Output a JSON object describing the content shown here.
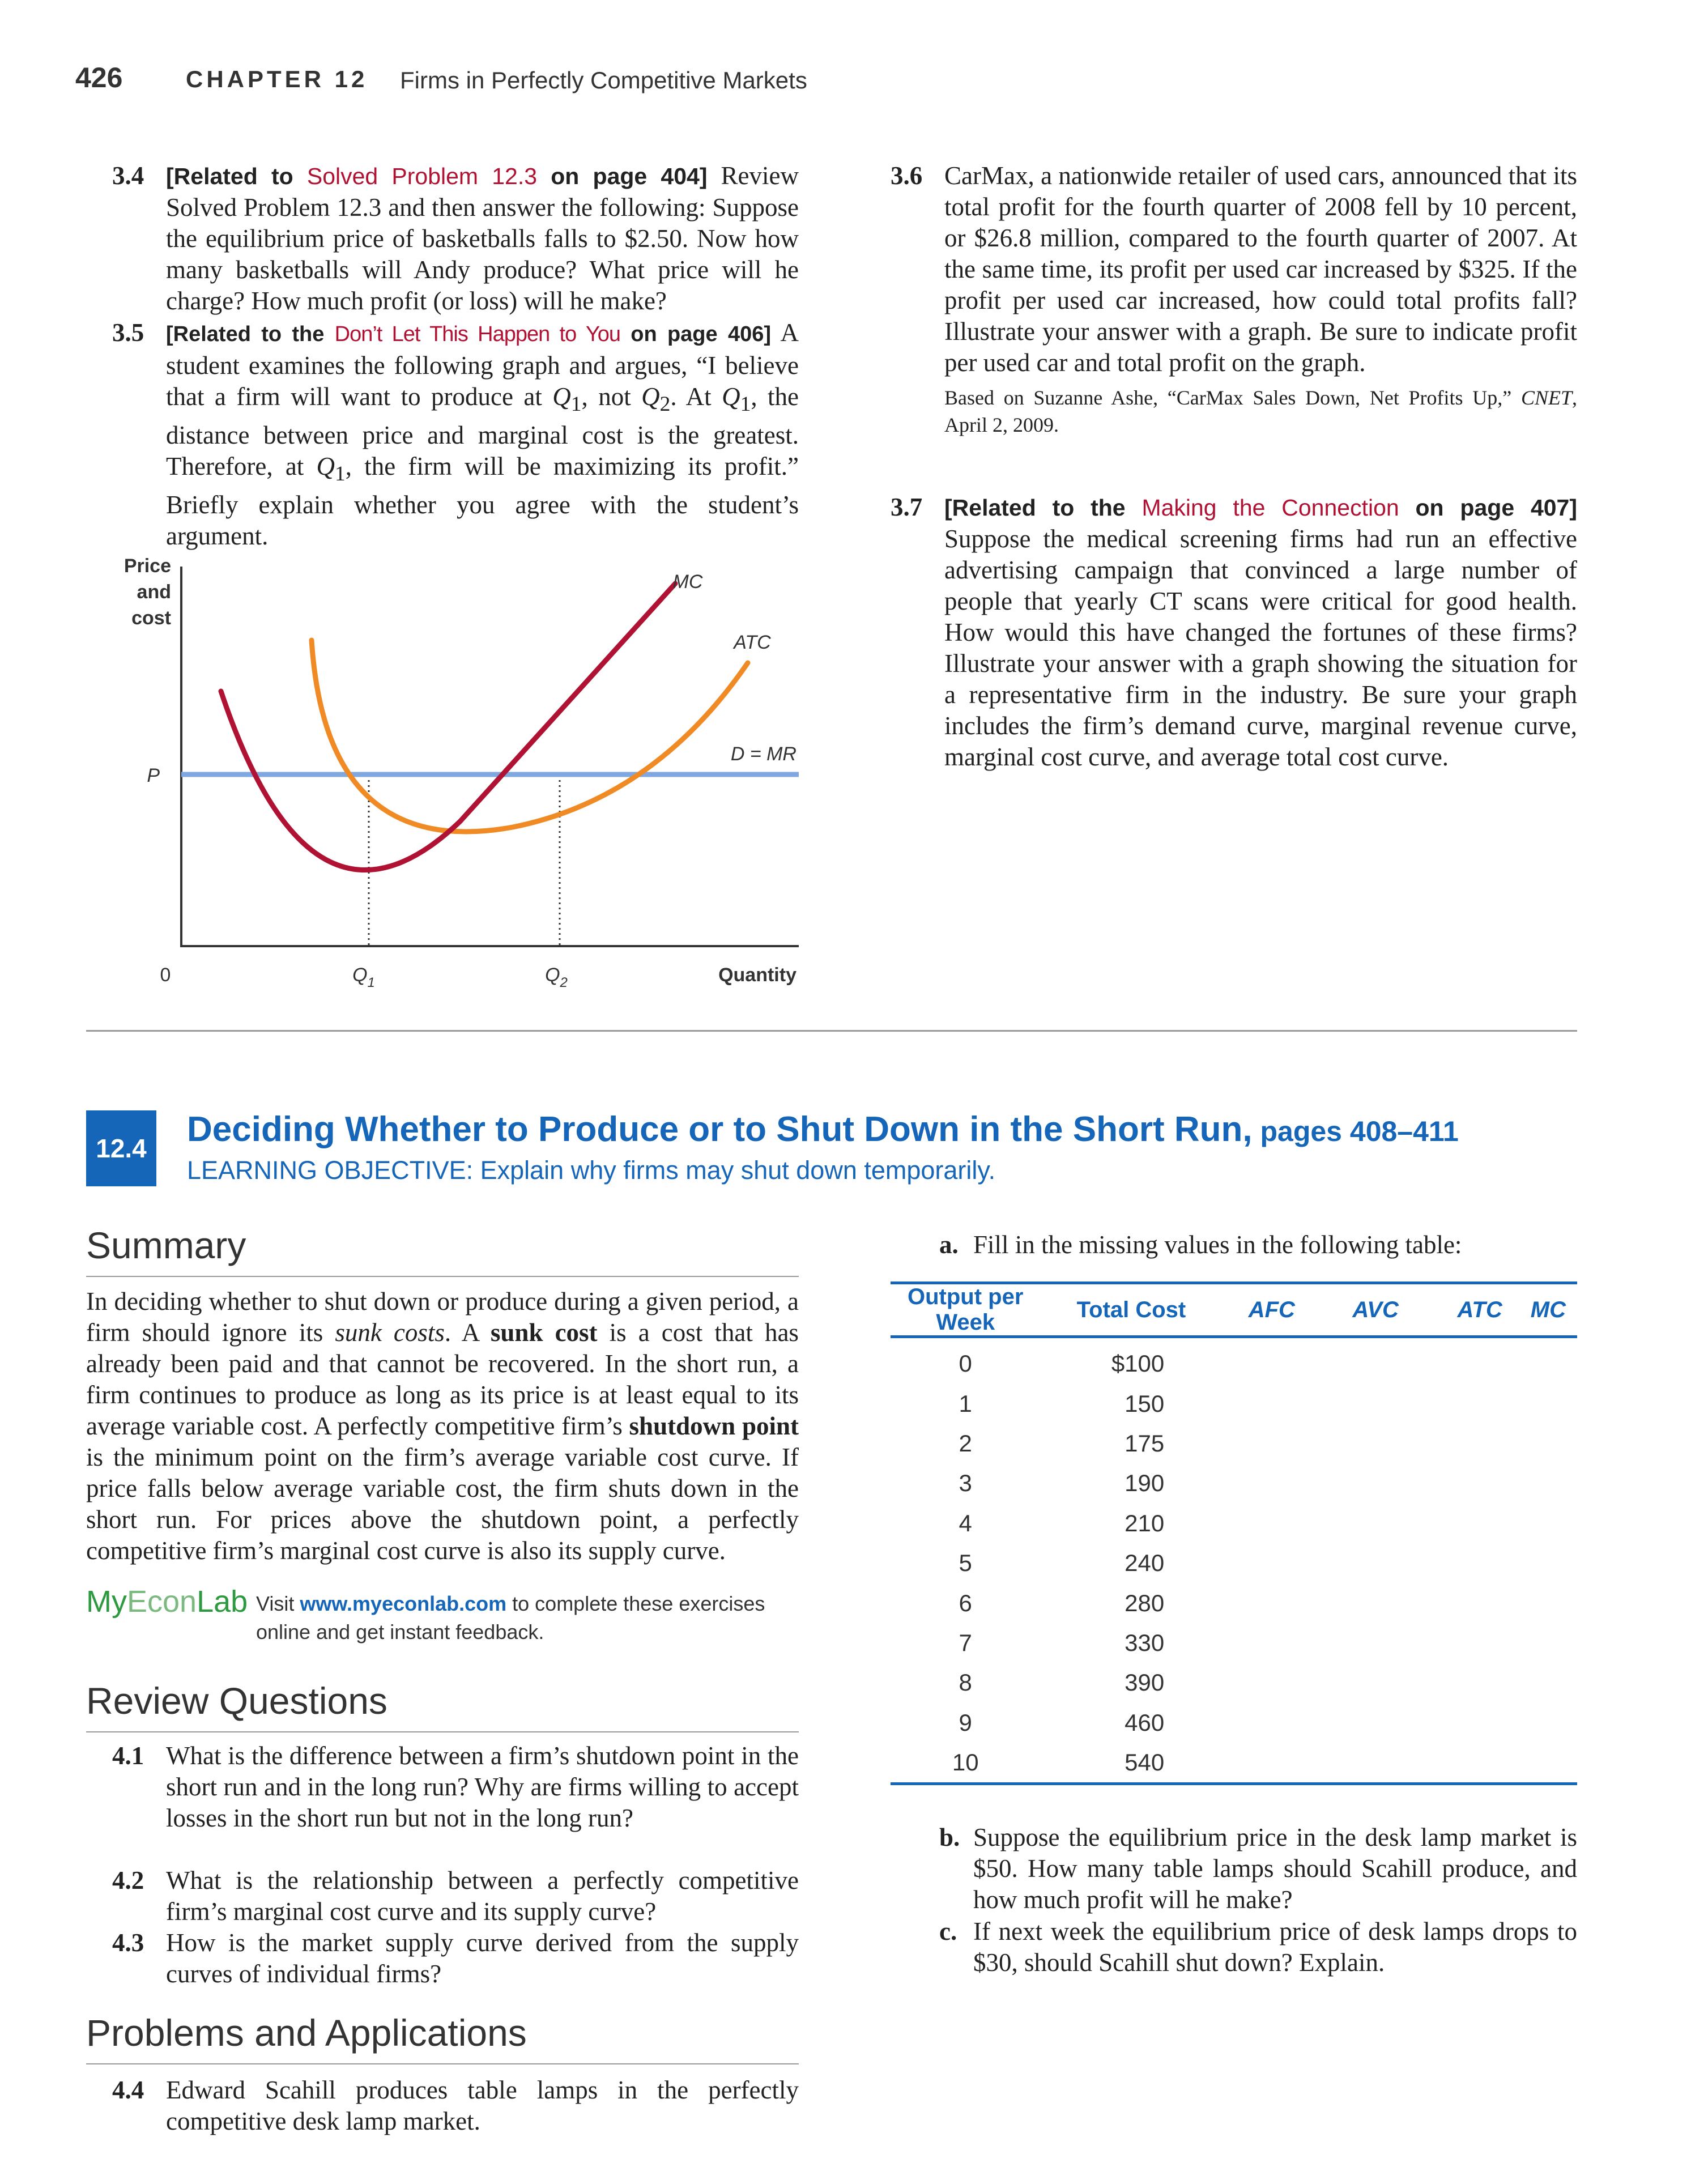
{
  "header": {
    "page_number": "426",
    "chapter": "CHAPTER 12",
    "chapter_title": "Firms in Perfectly Competitive Markets"
  },
  "problems_left": {
    "p34": {
      "num": "3.4",
      "related_prefix": "[Related to ",
      "related_link": "Solved Problem 12.3",
      "related_suffix": " on page 404]",
      "text": " Review Solved Problem 12.3 and then answer the following: Suppose the equilibrium price of basketballs falls to $2.50. Now how many basketballs will Andy produce? What price will he charge? How much profit (or loss) will he make?"
    },
    "p35": {
      "num": "3.5",
      "related_prefix": "[Related to the ",
      "related_link": "Don’t Let This Happen to You",
      "related_suffix": " on page 406]",
      "text_1": "A student examines the following graph and argues, “I believe that a firm will want to produce at ",
      "q1": "Q",
      "q1_sub": "1",
      "text_2": ", not ",
      "q2": "Q",
      "q2_sub": "2",
      "text_3": ". At ",
      "text_4": ", the distance between price and marginal cost is the greatest. Therefore, at ",
      "text_5": ", the firm will be maximizing its profit.” Briefly explain whether you agree with the student’s argument."
    }
  },
  "graph": {
    "y_axis_label_1": "Price",
    "y_axis_label_2": "and",
    "y_axis_label_3": "cost",
    "price_label": "P",
    "origin_label": "0",
    "q1_label": "Q",
    "q1_sub": "1",
    "q2_label": "Q",
    "q2_sub": "2",
    "x_axis_label": "Quantity",
    "mc_label": "MC",
    "atc_label": "ATC",
    "dmr_label": "D = MR",
    "colors": {
      "mc": "#b01234",
      "atc": "#f08a24",
      "dmr": "#7fa8e0",
      "axis": "#333333"
    }
  },
  "problems_right": {
    "p36": {
      "num": "3.6",
      "text": "CarMax, a nationwide retailer of used cars, announced that its total profit for the fourth quarter of 2008 fell by 10 percent, or $26.8 million, compared to the fourth quarter of 2007. At the same time, its profit per used car increased by $325. If the profit per used car increased, how could total profits fall? Illustrate your answer with a graph. Be sure to indicate profit per used car and total profit on the graph.",
      "source_prefix": "Based on Suzanne Ashe, “CarMax Sales Down, Net Profits Up,” ",
      "source_pub": "CNET",
      "source_suffix": ", April 2, 2009."
    },
    "p37": {
      "num": "3.7",
      "related_prefix": "[Related to the ",
      "related_link": "Making the Connection",
      "related_suffix": " on page 407]",
      "text": "Suppose the medical screening firms had run an effective advertising campaign that convinced a large number of people that yearly CT scans were critical for good health. How would this have changed the fortunes of these firms? Illustrate your answer with a graph showing the situation for a representative firm in the industry. Be sure your graph includes the firm’s demand curve, marginal revenue curve, marginal cost curve, and average total cost curve."
    }
  },
  "section": {
    "number": "12.4",
    "title": "Deciding Whether to Produce or to Shut Down in the Short Run,",
    "pages": " pages 408–411",
    "objective": "LEARNING OBJECTIVE: Explain why firms may shut down temporarily."
  },
  "summary": {
    "heading": "Summary",
    "t1": "In deciding whether to shut down or produce during a given period, a firm should ignore its ",
    "t1_em": "sunk costs",
    "t2": ". A ",
    "t2_b": "sunk cost",
    "t3": " is a cost that has already been paid and that cannot be recovered. In the short run, a firm continues to produce as long as its price is at least equal to its average variable cost. A perfectly competitive firm’s ",
    "t3_b": "shutdown point",
    "t4": " is the minimum point on the firm’s average variable cost curve. If price falls below average variable cost, the firm shuts down in the short run. For prices above the shutdown point, a perfectly competitive firm’s marginal cost curve is also its supply curve."
  },
  "myeconlab": {
    "logo_my": "My",
    "logo_econ": "Econ",
    "logo_lab": "Lab",
    "visit": "Visit ",
    "url": "www.myeconlab.com",
    "rest": " to complete these exercises online and get instant feedback."
  },
  "review": {
    "heading": "Review Questions",
    "items": [
      {
        "num": "4.1",
        "text": "What is the difference between a firm’s shutdown point in the short run and in the long run? Why are firms willing to accept losses in the short run but not in the long run?"
      },
      {
        "num": "4.2",
        "text": "What is the relationship between a perfectly competitive firm’s marginal cost curve and its supply curve?"
      },
      {
        "num": "4.3",
        "text": "How is the market supply curve derived from the supply curves of individual firms?"
      }
    ]
  },
  "problems_apps": {
    "heading": "Problems and Applications",
    "p44": {
      "num": "4.4",
      "text": "Edward Scahill produces table lamps in the perfectly competitive desk lamp market."
    }
  },
  "part_a": {
    "letter": "a.",
    "text": "Fill in the missing values in the following table:"
  },
  "table": {
    "headers": [
      "Output per Week",
      "Total Cost",
      "AFC",
      "AVC",
      "ATC",
      "MC"
    ],
    "rows": [
      [
        "0",
        "$100"
      ],
      [
        "1",
        "150"
      ],
      [
        "2",
        "175"
      ],
      [
        "3",
        "190"
      ],
      [
        "4",
        "210"
      ],
      [
        "5",
        "240"
      ],
      [
        "6",
        "280"
      ],
      [
        "7",
        "330"
      ],
      [
        "8",
        "390"
      ],
      [
        "9",
        "460"
      ],
      [
        "10",
        "540"
      ]
    ]
  },
  "part_b": {
    "letter": "b.",
    "text": "Suppose the equilibrium price in the desk lamp market is $50. How many table lamps should Scahill produce, and how much profit will he make?"
  },
  "part_c": {
    "letter": "c.",
    "text": "If next week the equilibrium price of desk lamps drops to $30, should Scahill shut down? Explain."
  }
}
